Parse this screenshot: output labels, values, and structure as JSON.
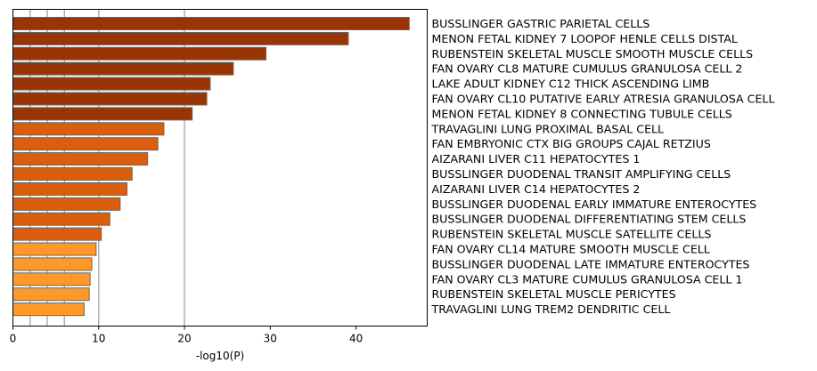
{
  "chart_data": {
    "type": "bar",
    "orientation": "horizontal",
    "xlabel": "-log10(P)",
    "xlim": [
      0,
      48.3
    ],
    "xticks": [
      0,
      10,
      20,
      30,
      40
    ],
    "reference_lines": [
      2,
      4,
      6,
      10,
      20
    ],
    "categories": [
      "BUSSLINGER GASTRIC PARIETAL CELLS",
      "MENON FETAL KIDNEY 7 LOOPOF HENLE CELLS DISTAL",
      "RUBENSTEIN SKELETAL MUSCLE SMOOTH MUSCLE CELLS",
      "FAN OVARY CL8 MATURE CUMULUS GRANULOSA CELL 2",
      "LAKE ADULT KIDNEY C12 THICK ASCENDING LIMB",
      "FAN OVARY CL10 PUTATIVE EARLY ATRESIA GRANULOSA CELL",
      "MENON FETAL KIDNEY 8 CONNECTING TUBULE CELLS",
      "TRAVAGLINI LUNG PROXIMAL BASAL CELL",
      "FAN EMBRYONIC CTX BIG GROUPS CAJAL RETZIUS",
      "AIZARANI LIVER C11 HEPATOCYTES 1",
      "BUSSLINGER DUODENAL TRANSIT AMPLIFYING CELLS",
      "AIZARANI LIVER C14 HEPATOCYTES 2",
      "BUSSLINGER DUODENAL EARLY IMMATURE ENTEROCYTES",
      "BUSSLINGER DUODENAL DIFFERENTIATING STEM CELLS",
      "RUBENSTEIN SKELETAL MUSCLE SATELLITE CELLS",
      "FAN OVARY CL14 MATURE SMOOTH MUSCLE CELL",
      "BUSSLINGER DUODENAL LATE IMMATURE ENTEROCYTES",
      "FAN OVARY CL3 MATURE CUMULUS GRANULOSA CELL 1",
      "RUBENSTEIN SKELETAL MUSCLE PERICYTES",
      "TRAVAGLINI LUNG TREM2 DENDRITIC CELL"
    ],
    "values": [
      46.2,
      39.1,
      29.5,
      25.7,
      23.0,
      22.6,
      20.9,
      17.6,
      16.9,
      15.7,
      13.9,
      13.3,
      12.5,
      11.3,
      10.3,
      9.7,
      9.2,
      9.0,
      8.9,
      8.3
    ],
    "colors": [
      "#993404",
      "#993404",
      "#993404",
      "#993404",
      "#993404",
      "#993404",
      "#993404",
      "#D95F0E",
      "#D95F0E",
      "#D95F0E",
      "#D95F0E",
      "#D95F0E",
      "#D95F0E",
      "#D95F0E",
      "#D95F0E",
      "#FE9929",
      "#FE9929",
      "#FE9929",
      "#FE9929",
      "#FE9929"
    ],
    "bar_edge_color": "#666666",
    "reference_line_color": "#aaaaaa"
  }
}
